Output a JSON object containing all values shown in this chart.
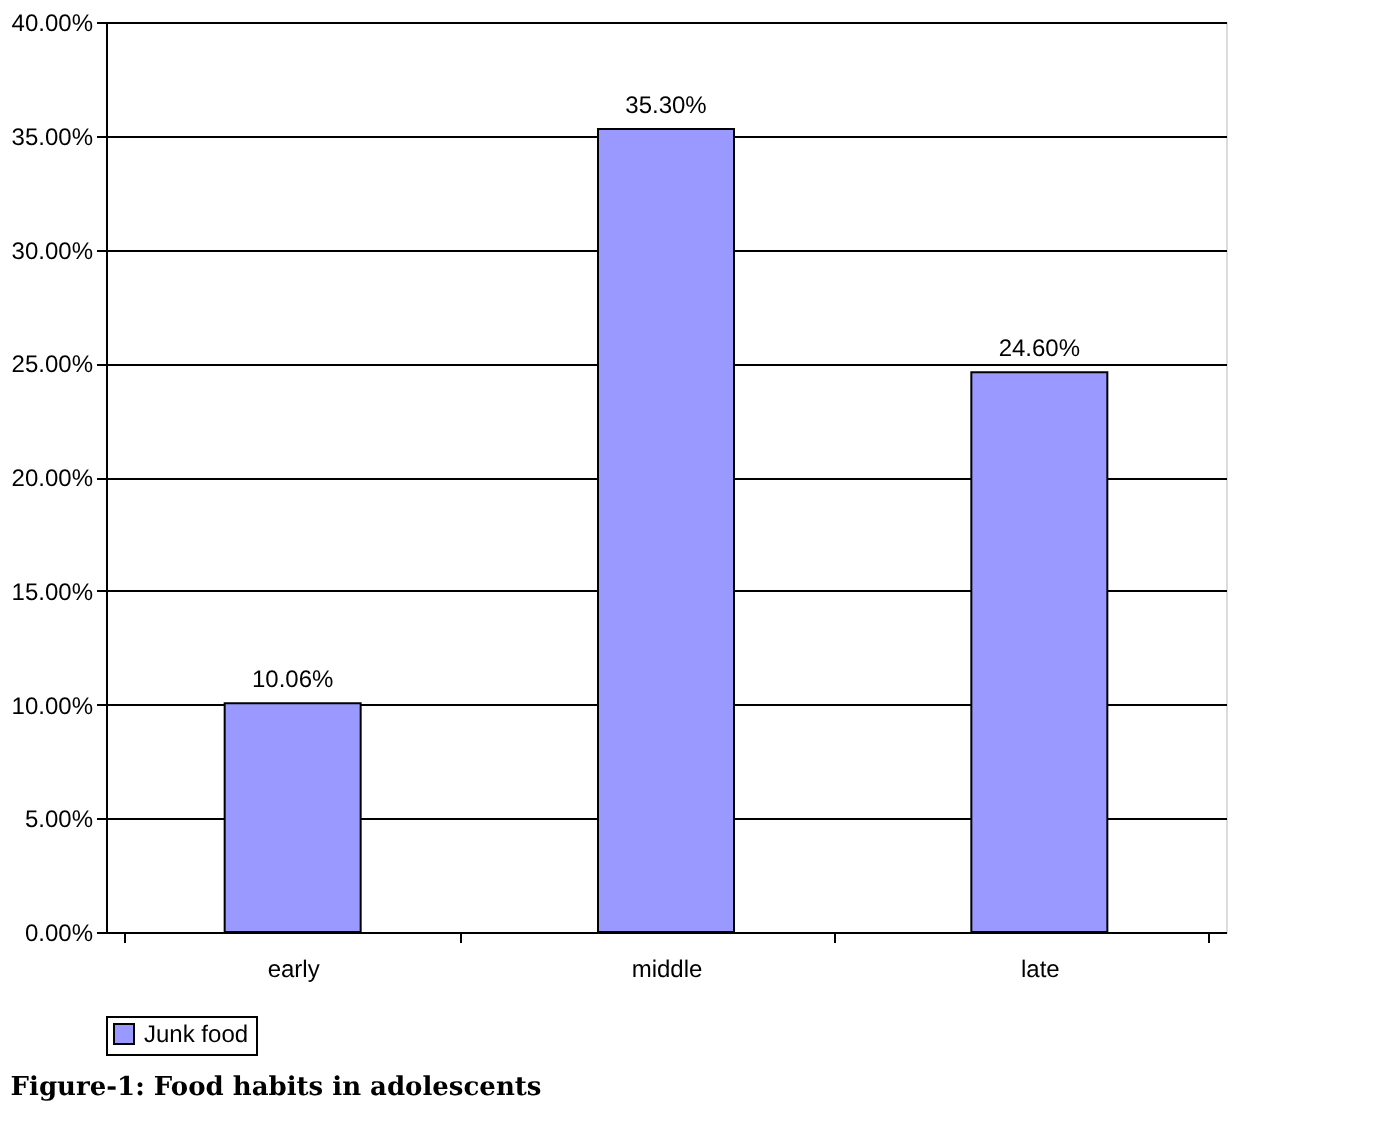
{
  "chart_data": {
    "type": "bar",
    "title": "Figure-1: Food habits in adolescents",
    "categories": [
      "early",
      "middle",
      "late"
    ],
    "series": [
      {
        "name": "Junk food",
        "color": "#9999ff",
        "values": [
          10.06,
          35.3,
          24.6
        ],
        "value_labels": [
          "10.06%",
          "35.30%",
          "24.60%"
        ]
      }
    ],
    "ylim": [
      0,
      40
    ],
    "yticks": [
      {
        "value": 0,
        "label": "0.00%"
      },
      {
        "value": 5,
        "label": "5.00%"
      },
      {
        "value": 10,
        "label": "10.00%"
      },
      {
        "value": 15,
        "label": "15.00%"
      },
      {
        "value": 20,
        "label": "20.00%"
      },
      {
        "value": 25,
        "label": "25.00%"
      },
      {
        "value": 30,
        "label": "30.00%"
      },
      {
        "value": 35,
        "label": "35.00%"
      },
      {
        "value": 40,
        "label": "40.00%"
      }
    ],
    "grid": "y",
    "legend": "bottom"
  }
}
